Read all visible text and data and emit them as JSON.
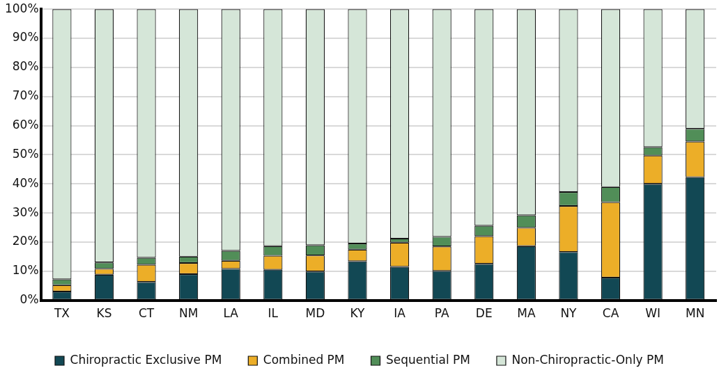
{
  "chart_data": {
    "type": "bar",
    "stacked": true,
    "categories": [
      "TX",
      "KS",
      "CT",
      "NM",
      "LA",
      "IL",
      "MD",
      "KY",
      "IA",
      "PA",
      "DE",
      "MA",
      "NY",
      "CA",
      "WI",
      "MN"
    ],
    "series": [
      {
        "name": "Chiropractic Exclusive PM",
        "color": "#124854",
        "values": [
          3,
          8.8,
          6.3,
          9,
          10.8,
          10.5,
          9.9,
          13.4,
          11.5,
          10.1,
          12.5,
          18.6,
          16.6,
          7.8,
          40,
          42.3
        ]
      },
      {
        "name": "Combined PM",
        "color": "#ecae28",
        "values": [
          2.2,
          2,
          5.9,
          3.8,
          2.8,
          4.8,
          5.5,
          4,
          8.3,
          8.4,
          9.5,
          6.3,
          15.8,
          25.9,
          9.7,
          12.2
        ]
      },
      {
        "name": "Sequential PM",
        "color": "#518e58",
        "values": [
          2,
          2.2,
          2.4,
          2.2,
          3.4,
          3.3,
          3.5,
          2.1,
          1.4,
          3.3,
          3.6,
          4.3,
          4.8,
          5.2,
          2.9,
          4.4
        ]
      },
      {
        "name": "Non-Chiropractic-Only PM",
        "color": "#d5e6d8",
        "values": [
          92.8,
          87,
          85.4,
          85,
          83,
          81.4,
          81.1,
          80.5,
          78.8,
          78.2,
          74.4,
          70.8,
          62.8,
          61.1,
          47.4,
          41.1
        ]
      }
    ],
    "ylim": [
      0,
      100
    ],
    "yticks": [
      {
        "value": 0,
        "label": "0%"
      },
      {
        "value": 10,
        "label": "10%"
      },
      {
        "value": 20,
        "label": "20%"
      },
      {
        "value": 30,
        "label": "30%"
      },
      {
        "value": 40,
        "label": "40%"
      },
      {
        "value": 50,
        "label": "50%"
      },
      {
        "value": 60,
        "label": "60%"
      },
      {
        "value": 70,
        "label": "70%"
      },
      {
        "value": 80,
        "label": "80%"
      },
      {
        "value": 90,
        "label": "90%"
      },
      {
        "value": 100,
        "label": "100%"
      }
    ],
    "grid": "y",
    "legend": "bottom"
  }
}
